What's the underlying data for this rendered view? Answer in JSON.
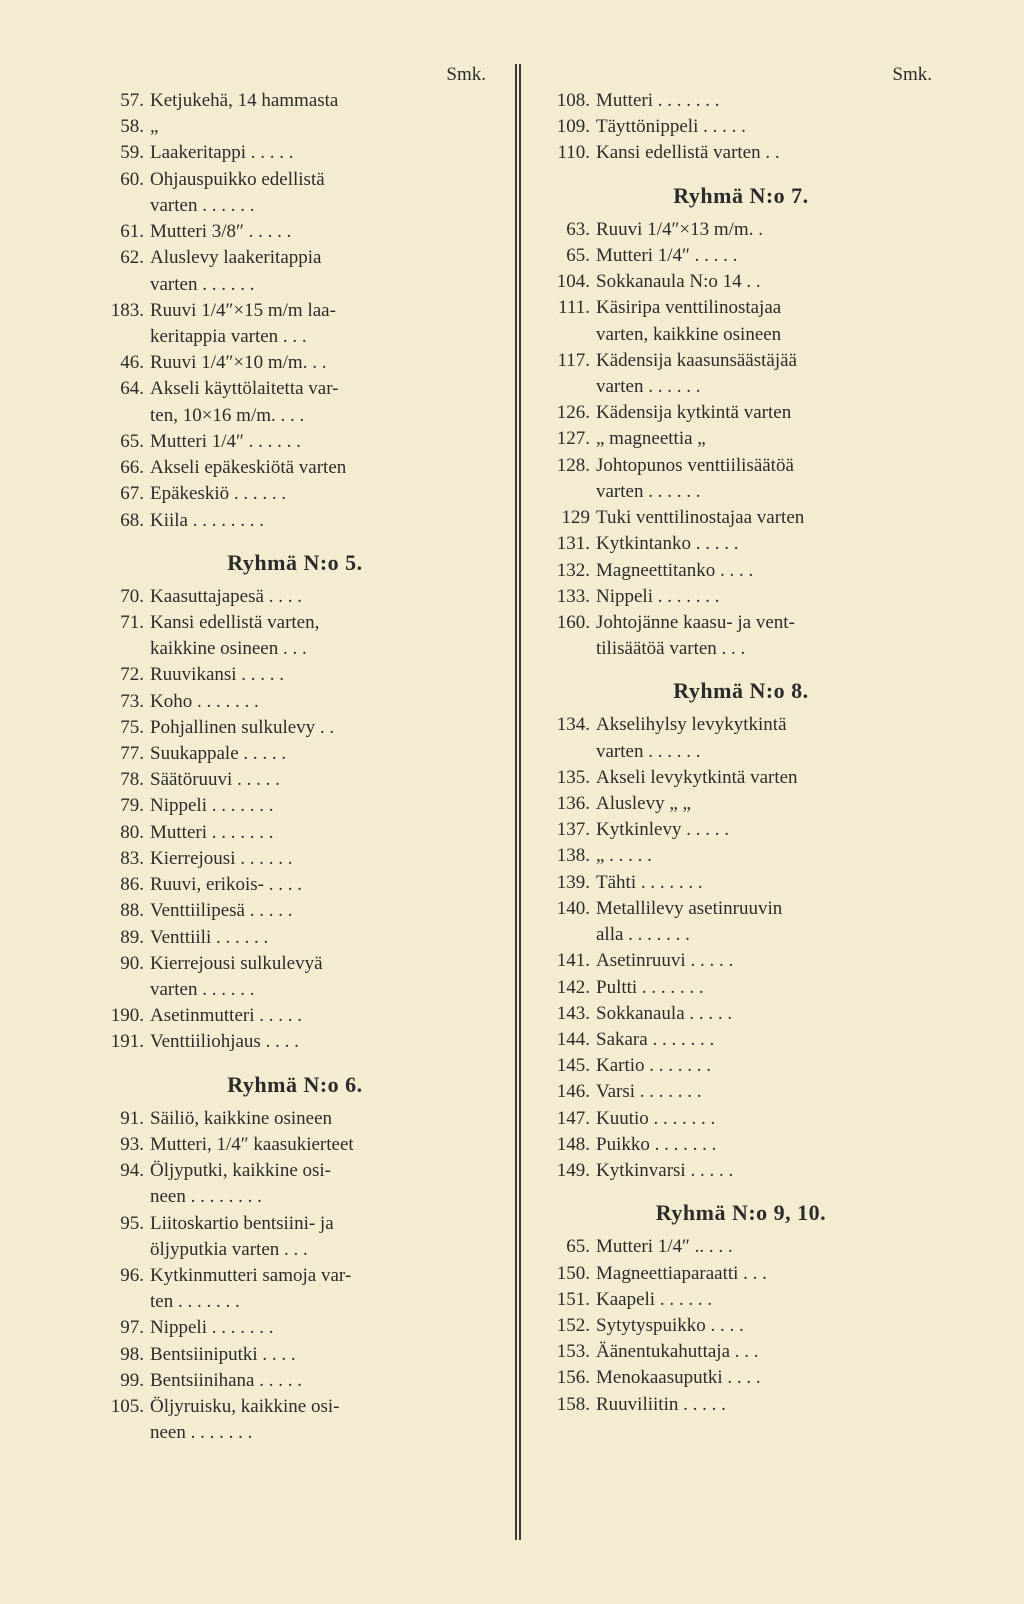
{
  "smk": "Smk.",
  "left": {
    "block1": [
      {
        "n": "57.",
        "t": "Ketjukehä, 14 hammasta"
      },
      {
        "n": "58.",
        "t": "        „"
      },
      {
        "n": "59.",
        "t": "Laakeritappi . . . . ."
      },
      {
        "n": "60.",
        "t": "Ohjauspuikko edellistä"
      },
      {
        "n": "",
        "t": "varten . . . . . ."
      },
      {
        "n": "61.",
        "t": "Mutteri 3/8″ . . . . ."
      },
      {
        "n": "62.",
        "t": "Aluslevy  laakeritappia"
      },
      {
        "n": "",
        "t": "varten . . . . . ."
      },
      {
        "n": "183.",
        "t": "Ruuvi 1/4″×15 m/m laa-"
      },
      {
        "n": "",
        "t": "keritappia varten . . ."
      },
      {
        "n": "46.",
        "t": "Ruuvi 1/4″×10 m/m. . ."
      },
      {
        "n": "64.",
        "t": "Akseli käyttölaitetta var-"
      },
      {
        "n": "",
        "t": "ten, 10×16 m/m. . . ."
      },
      {
        "n": "65.",
        "t": "Mutteri 1/4″ . . . . . ."
      },
      {
        "n": "66.",
        "t": "Akseli epäkeskiötä varten"
      },
      {
        "n": "67.",
        "t": "Epäkeskiö . . . . . ."
      },
      {
        "n": "68.",
        "t": "Kiila . . . . . . . ."
      }
    ],
    "h5": "Ryhmä N:o 5.",
    "block5": [
      {
        "n": "70.",
        "t": "Kaasuttajapesä . . . ."
      },
      {
        "n": "71.",
        "t": "Kansi  edellistä  varten,"
      },
      {
        "n": "",
        "t": "kaikkine osineen . . ."
      },
      {
        "n": "72.",
        "t": "Ruuvikansi . . . . ."
      },
      {
        "n": "73.",
        "t": "Koho . . . . . . ."
      },
      {
        "n": "75.",
        "t": "Pohjallinen sulkulevy . ."
      },
      {
        "n": "77.",
        "t": "Suukappale . . . . ."
      },
      {
        "n": "78.",
        "t": "Säätöruuvi . . . . ."
      },
      {
        "n": "79.",
        "t": "Nippeli . . . . . . ."
      },
      {
        "n": "80.",
        "t": "Mutteri . . . . . . ."
      },
      {
        "n": "83.",
        "t": "Kierrejousi . . . . . ."
      },
      {
        "n": "86.",
        "t": "Ruuvi, erikois- . . . ."
      },
      {
        "n": "88.",
        "t": "Venttiilipesä . . . . ."
      },
      {
        "n": "89.",
        "t": "Venttiili . . . . . ."
      },
      {
        "n": "90.",
        "t": "Kierrejousi   sulkulevyä"
      },
      {
        "n": "",
        "t": "varten . . . . . ."
      },
      {
        "n": "190.",
        "t": "Asetinmutteri . . . . ."
      },
      {
        "n": "191.",
        "t": "Venttiiliohjaus . . . ."
      }
    ],
    "h6": "Ryhmä N:o 6.",
    "block6": [
      {
        "n": "91.",
        "t": "Säiliö, kaikkine osineen"
      },
      {
        "n": "93.",
        "t": "Mutteri, 1/4″ kaasukierteet"
      },
      {
        "n": "94.",
        "t": "Öljyputki, kaikkine osi-"
      },
      {
        "n": "",
        "t": "neen . . . . . . . ."
      },
      {
        "n": "95.",
        "t": "Liitoskartio  bentsiini-  ja"
      },
      {
        "n": "",
        "t": "öljyputkia varten . . ."
      },
      {
        "n": "96.",
        "t": "Kytkinmutteri samoja var-"
      },
      {
        "n": "",
        "t": "ten . . . . . . ."
      },
      {
        "n": "97.",
        "t": "Nippeli . . . . . . ."
      },
      {
        "n": "98.",
        "t": "Bentsiiniputki . . . ."
      },
      {
        "n": "99.",
        "t": "Bentsiinihana . . . . ."
      },
      {
        "n": "105.",
        "t": "Öljyruisku, kaikkine osi-"
      },
      {
        "n": "",
        "t": "neen . . . . . . ."
      }
    ]
  },
  "right": {
    "block1": [
      {
        "n": "108.",
        "t": "Mutteri . . . . . . ."
      },
      {
        "n": "109.",
        "t": "Täyttönippeli . . . . ."
      },
      {
        "n": "110.",
        "t": "Kansi edellistä varten . ."
      }
    ],
    "h7": "Ryhmä N:o 7.",
    "block7": [
      {
        "n": "63.",
        "t": "Ruuvi 1/4″×13 m/m.  ."
      },
      {
        "n": "65.",
        "t": "Mutteri 1/4″ . . . . ."
      },
      {
        "n": "104.",
        "t": "Sokkanaula N:o 14 . ."
      },
      {
        "n": "111.",
        "t": "Käsiripa  venttilinostajaa"
      },
      {
        "n": "",
        "t": "varten, kaikkine osineen"
      },
      {
        "n": "117.",
        "t": "Kädensija kaasunsäästäjää"
      },
      {
        "n": "",
        "t": "varten . . . . . ."
      },
      {
        "n": "126.",
        "t": "Kädensija kytkintä varten"
      },
      {
        "n": "127.",
        "t": "   „      magneettia   „"
      },
      {
        "n": "128.",
        "t": "Johtopunos venttiilisäätöä"
      },
      {
        "n": "",
        "t": "varten . . . . . ."
      },
      {
        "n": "129",
        "t": "Tuki venttilinostajaa varten"
      },
      {
        "n": "131.",
        "t": "Kytkintanko . . . . ."
      },
      {
        "n": "132.",
        "t": "Magneettitanko . . . ."
      },
      {
        "n": "133.",
        "t": "Nippeli . . . . . . ."
      },
      {
        "n": "160.",
        "t": "Johtojänne kaasu- ja vent-"
      },
      {
        "n": "",
        "t": "tilisäätöä varten . . ."
      }
    ],
    "h8": "Ryhmä N:o 8.",
    "block8": [
      {
        "n": "134.",
        "t": "Akselihylsy  levykytkintä"
      },
      {
        "n": "",
        "t": "varten . . . . . ."
      },
      {
        "n": "135.",
        "t": "Akseli levykytkintä varten"
      },
      {
        "n": "136.",
        "t": "Aluslevy    „        „"
      },
      {
        "n": "137.",
        "t": "Kytkinlevy . . . . ."
      },
      {
        "n": "138.",
        "t": "     „     . . . . ."
      },
      {
        "n": "139.",
        "t": "Tähti . . . . . . ."
      },
      {
        "n": "140.",
        "t": "Metallilevy  asetinruuvin"
      },
      {
        "n": "",
        "t": "alla . . . . . . ."
      },
      {
        "n": "141.",
        "t": "Asetinruuvi . . . . ."
      },
      {
        "n": "142.",
        "t": "Pultti . . . . . . ."
      },
      {
        "n": "143.",
        "t": "Sokkanaula . . . . ."
      },
      {
        "n": "144.",
        "t": "Sakara . . . . . . ."
      },
      {
        "n": "145.",
        "t": "Kartio . . . . . . ."
      },
      {
        "n": "146.",
        "t": "Varsi . . . . . . ."
      },
      {
        "n": "147.",
        "t": "Kuutio . . . . . . ."
      },
      {
        "n": "148.",
        "t": "Puikko . . . . . . ."
      },
      {
        "n": "149.",
        "t": "Kytkinvarsi . . . . ."
      }
    ],
    "h910": "Ryhmä N:o 9, 10.",
    "block910": [
      {
        "n": "65.",
        "t": "Mutteri 1/4″  .. . . ."
      },
      {
        "n": "150.",
        "t": "Magneettiaparaatti . . ."
      },
      {
        "n": "151.",
        "t": "Kaapeli  . . . . . ."
      },
      {
        "n": "152.",
        "t": "Sytytyspuikko . . . ."
      },
      {
        "n": "153.",
        "t": "Äänentukahuttaja . . ."
      },
      {
        "n": "156.",
        "t": "Menokaasuputki . . . ."
      },
      {
        "n": "158.",
        "t": "Ruuviliitin  . . . . ."
      }
    ]
  }
}
